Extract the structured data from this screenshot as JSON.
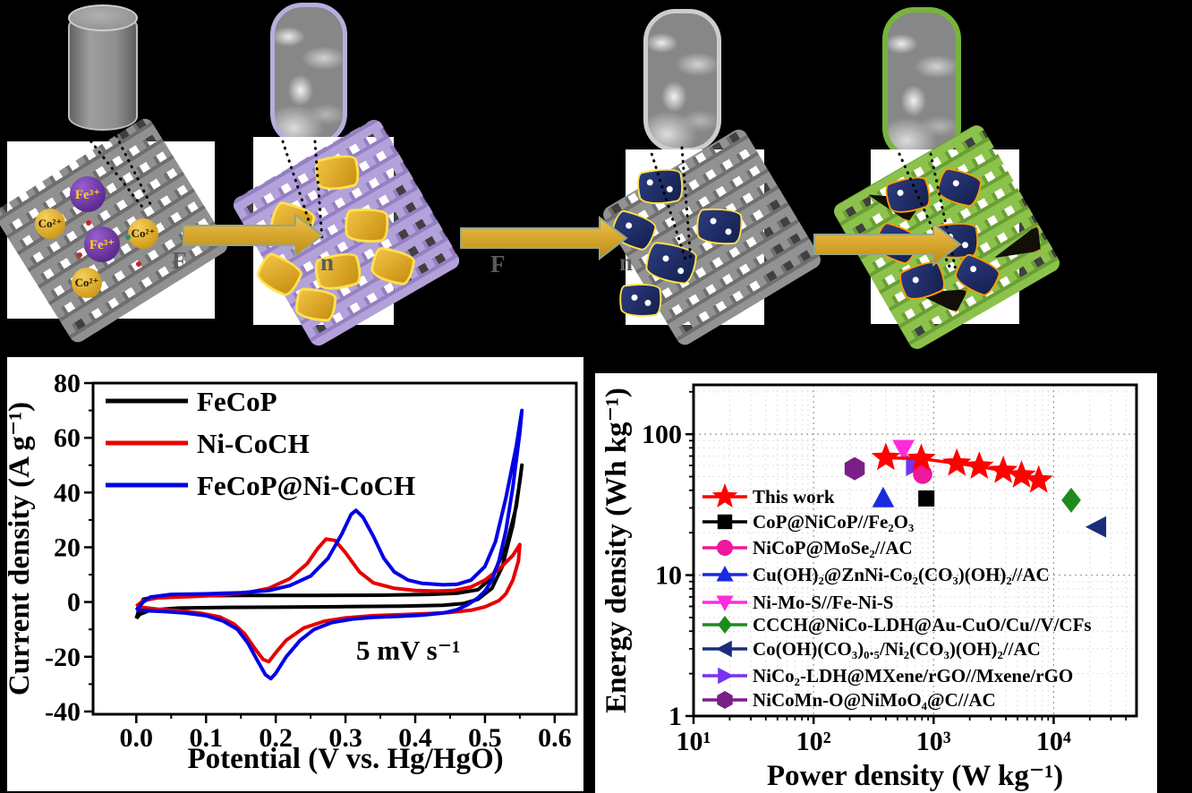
{
  "scheme": {
    "stage1": {
      "fe_label": "Fe³⁺",
      "co_label": "Co²⁺"
    },
    "stray_labels": {
      "s1": "F",
      "s2": "n",
      "s3": "F",
      "s4": "n"
    },
    "colors": {
      "substrate_gray": "#8f8f8f",
      "mesh_lavender": "#b3a2da",
      "mesh_green": "#8cc24c",
      "flake_gold": "#e0a82a",
      "flake_navy": "#1d2a63",
      "capsule2_border": "#b7aede",
      "capsule3_border": "#cdcdcd",
      "capsule4_border": "#76b43c",
      "arrow_gold": "#d9a227",
      "fe_sphere_purple": "#6a30a0",
      "co_sphere_gold": "#e6b42e"
    }
  },
  "chart_data": [
    {
      "id": "cv",
      "type": "line",
      "title": "",
      "xlabel": "Potential (V vs. Hg/HgO)",
      "ylabel": "Current density (A g⁻¹)",
      "annotation": "5 mV s⁻¹",
      "annotation_at": [
        0.39,
        -21
      ],
      "xlim": [
        -0.062,
        0.631
      ],
      "ylim": [
        -41,
        80
      ],
      "xticks": [
        0.0,
        0.1,
        0.2,
        0.3,
        0.4,
        0.5,
        0.6
      ],
      "yticks": [
        -40,
        -20,
        0,
        20,
        40,
        60,
        80
      ],
      "grid": false,
      "legend_position": "top-left",
      "series": [
        {
          "name": "FeCoP",
          "color": "#000000",
          "points": [
            [
              0,
              -6
            ],
            [
              0.005,
              -2
            ],
            [
              0.01,
              1
            ],
            [
              0.03,
              2
            ],
            [
              0.08,
              2.3
            ],
            [
              0.15,
              2.4
            ],
            [
              0.25,
              2.4
            ],
            [
              0.35,
              2.5
            ],
            [
              0.42,
              2.8
            ],
            [
              0.46,
              3.2
            ],
            [
              0.49,
              4.5
            ],
            [
              0.51,
              9
            ],
            [
              0.53,
              20
            ],
            [
              0.545,
              35
            ],
            [
              0.553,
              50
            ],
            [
              0.55,
              44
            ],
            [
              0.54,
              28
            ],
            [
              0.525,
              13
            ],
            [
              0.51,
              5
            ],
            [
              0.49,
              1
            ],
            [
              0.47,
              -0.5
            ],
            [
              0.44,
              -1.2
            ],
            [
              0.38,
              -1.5
            ],
            [
              0.3,
              -1.7
            ],
            [
              0.2,
              -1.9
            ],
            [
              0.12,
              -2
            ],
            [
              0.06,
              -2.2
            ],
            [
              0.02,
              -3
            ],
            [
              0.005,
              -4.5
            ],
            [
              0,
              -6
            ]
          ]
        },
        {
          "name": "Ni-CoCH",
          "color": "#e60000",
          "points": [
            [
              0,
              -1.5
            ],
            [
              0.01,
              0.5
            ],
            [
              0.03,
              1.5
            ],
            [
              0.08,
              2
            ],
            [
              0.12,
              2.5
            ],
            [
              0.16,
              3.5
            ],
            [
              0.19,
              5
            ],
            [
              0.22,
              8.5
            ],
            [
              0.245,
              14
            ],
            [
              0.26,
              19.5
            ],
            [
              0.272,
              23
            ],
            [
              0.285,
              22.5
            ],
            [
              0.3,
              18
            ],
            [
              0.32,
              11
            ],
            [
              0.34,
              7
            ],
            [
              0.37,
              5
            ],
            [
              0.4,
              4.2
            ],
            [
              0.43,
              4
            ],
            [
              0.455,
              4.2
            ],
            [
              0.48,
              5.5
            ],
            [
              0.5,
              8
            ],
            [
              0.52,
              12
            ],
            [
              0.54,
              17
            ],
            [
              0.55,
              21
            ],
            [
              0.548,
              15
            ],
            [
              0.54,
              8
            ],
            [
              0.53,
              3
            ],
            [
              0.52,
              0.5
            ],
            [
              0.5,
              -1.8
            ],
            [
              0.48,
              -3
            ],
            [
              0.45,
              -3.8
            ],
            [
              0.42,
              -4.2
            ],
            [
              0.38,
              -4.6
            ],
            [
              0.34,
              -5
            ],
            [
              0.3,
              -5.8
            ],
            [
              0.27,
              -7
            ],
            [
              0.24,
              -9.5
            ],
            [
              0.215,
              -14
            ],
            [
              0.2,
              -18.5
            ],
            [
              0.19,
              -21.8
            ],
            [
              0.182,
              -21
            ],
            [
              0.17,
              -17
            ],
            [
              0.155,
              -11.5
            ],
            [
              0.14,
              -8
            ],
            [
              0.12,
              -5.5
            ],
            [
              0.09,
              -4
            ],
            [
              0.06,
              -3.2
            ],
            [
              0.03,
              -2.6
            ],
            [
              0.01,
              -2
            ],
            [
              0,
              -1.5
            ]
          ]
        },
        {
          "name": "FeCoP@Ni-CoCH",
          "color": "#0000e6",
          "points": [
            [
              0,
              -3
            ],
            [
              0.01,
              0
            ],
            [
              0.02,
              1.8
            ],
            [
              0.05,
              2.8
            ],
            [
              0.1,
              3
            ],
            [
              0.15,
              3.4
            ],
            [
              0.19,
              4.2
            ],
            [
              0.22,
              6
            ],
            [
              0.25,
              9.5
            ],
            [
              0.275,
              16
            ],
            [
              0.295,
              25
            ],
            [
              0.308,
              32
            ],
            [
              0.315,
              33.5
            ],
            [
              0.325,
              31
            ],
            [
              0.34,
              24
            ],
            [
              0.355,
              16
            ],
            [
              0.37,
              11
            ],
            [
              0.39,
              8
            ],
            [
              0.41,
              6.8
            ],
            [
              0.44,
              6.3
            ],
            [
              0.46,
              6.5
            ],
            [
              0.48,
              8
            ],
            [
              0.5,
              13
            ],
            [
              0.515,
              22
            ],
            [
              0.53,
              38
            ],
            [
              0.545,
              57
            ],
            [
              0.553,
              70
            ],
            [
              0.55,
              62
            ],
            [
              0.54,
              42
            ],
            [
              0.53,
              26
            ],
            [
              0.52,
              15
            ],
            [
              0.51,
              8
            ],
            [
              0.5,
              4
            ],
            [
              0.49,
              1.5
            ],
            [
              0.475,
              -1
            ],
            [
              0.46,
              -2.8
            ],
            [
              0.44,
              -4
            ],
            [
              0.41,
              -4.8
            ],
            [
              0.38,
              -5.2
            ],
            [
              0.34,
              -5.6
            ],
            [
              0.31,
              -6.2
            ],
            [
              0.28,
              -7.5
            ],
            [
              0.255,
              -10
            ],
            [
              0.235,
              -14
            ],
            [
              0.215,
              -20
            ],
            [
              0.2,
              -26
            ],
            [
              0.193,
              -28
            ],
            [
              0.185,
              -26.5
            ],
            [
              0.175,
              -22
            ],
            [
              0.16,
              -15
            ],
            [
              0.145,
              -10
            ],
            [
              0.125,
              -7
            ],
            [
              0.1,
              -5
            ],
            [
              0.07,
              -4
            ],
            [
              0.04,
              -3.5
            ],
            [
              0.015,
              -3.2
            ],
            [
              0,
              -3
            ]
          ]
        }
      ]
    },
    {
      "id": "ragone",
      "type": "scatter",
      "xlabel": "Power density (W kg⁻¹)",
      "ylabel": "Energy density (Wh kg⁻¹)",
      "xscale": "log",
      "yscale": "log",
      "xlim": [
        10,
        49000
      ],
      "ylim": [
        1,
        224
      ],
      "xticklabels": [
        "10¹",
        "10²",
        "10³",
        "10⁴"
      ],
      "yticklabels": [
        "1",
        "10",
        "100"
      ],
      "grid": true,
      "legend_position": "left",
      "series": [
        {
          "name": "This work",
          "marker": "star",
          "color": "#ff0000",
          "size": 17,
          "line": true,
          "z": 3,
          "points": [
            [
              400,
              68
            ],
            [
              790,
              67
            ],
            [
              1560,
              62
            ],
            [
              2400,
              59
            ],
            [
              3800,
              55
            ],
            [
              5400,
              51
            ],
            [
              7500,
              47
            ]
          ]
        },
        {
          "name": "CoP@NiCoP//Fe₂O₃",
          "marker": "square",
          "color": "#000000",
          "size": 11,
          "z": 0,
          "points": [
            [
              870,
              35
            ]
          ]
        },
        {
          "name": "NiCoP@MoSe₂//AC",
          "marker": "circle",
          "color": "#ee189c",
          "size": 12,
          "z": 2,
          "points": [
            [
              810,
              52
            ]
          ]
        },
        {
          "name": "Cu(OH)₂@ZnNi-Co₂(CO₃)(OH)₂//AC",
          "marker": "tri-up",
          "color": "#1a2ae0",
          "size": 13,
          "z": 0,
          "points": [
            [
              380,
              35
            ]
          ]
        },
        {
          "name": "Ni-Mo-S//Fe-Ni-S",
          "marker": "tri-down",
          "color": "#ff2bdb",
          "size": 13,
          "z": 0,
          "points": [
            [
              560,
              79
            ]
          ]
        },
        {
          "name": "CCCH@NiCo-LDH@Au-CuO/Cu//V/CFs",
          "marker": "diamond",
          "color": "#1d8c1d",
          "size": 14,
          "z": 0,
          "points": [
            [
              14000,
              34
            ]
          ]
        },
        {
          "name": "Co(OH)(CO₃)₀.₅/Ni₂(CO₃)(OH)₂//AC",
          "marker": "tri-left",
          "color": "#1b2d7a",
          "size": 13,
          "z": 0,
          "points": [
            [
              23000,
              22
            ]
          ]
        },
        {
          "name": "NiCo₂-LDH@MXene/rGO//Mxene/rGO",
          "marker": "tri-right",
          "color": "#7733f0",
          "size": 13,
          "z": 1,
          "points": [
            [
              700,
              60
            ]
          ]
        },
        {
          "name": "NiCoMn-O@NiMoO₄@C//AC",
          "marker": "hexagon",
          "color": "#7a1f87",
          "size": 13,
          "z": 0,
          "points": [
            [
              220,
              57
            ]
          ]
        }
      ]
    }
  ]
}
